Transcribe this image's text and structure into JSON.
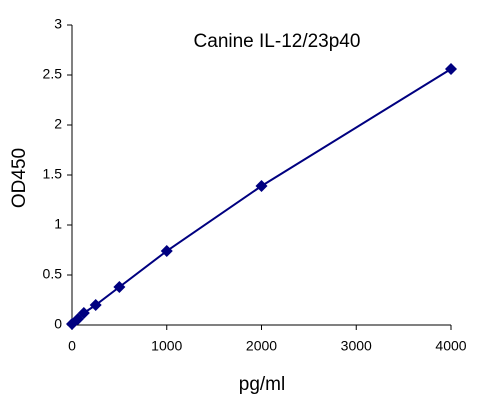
{
  "chart_data": {
    "type": "scatter-line",
    "title": "Canine IL-12/23p40",
    "x_label": "pg/ml",
    "y_label": "OD450",
    "x": [
      0,
      62.5,
      125,
      250,
      500,
      1000,
      2000,
      4000
    ],
    "series": [
      {
        "name": "Canine IL-12/23p40",
        "color": "#000080",
        "values": [
          0.01,
          0.06,
          0.12,
          0.2,
          0.38,
          0.74,
          1.39,
          2.56
        ]
      }
    ],
    "xlim": [
      0,
      4000
    ],
    "xticks": [
      0,
      1000,
      2000,
      3000,
      4000
    ],
    "ylim": [
      0,
      3
    ],
    "yticks": [
      0,
      0.5,
      1,
      1.5,
      2,
      2.5,
      3
    ],
    "grid": false
  }
}
